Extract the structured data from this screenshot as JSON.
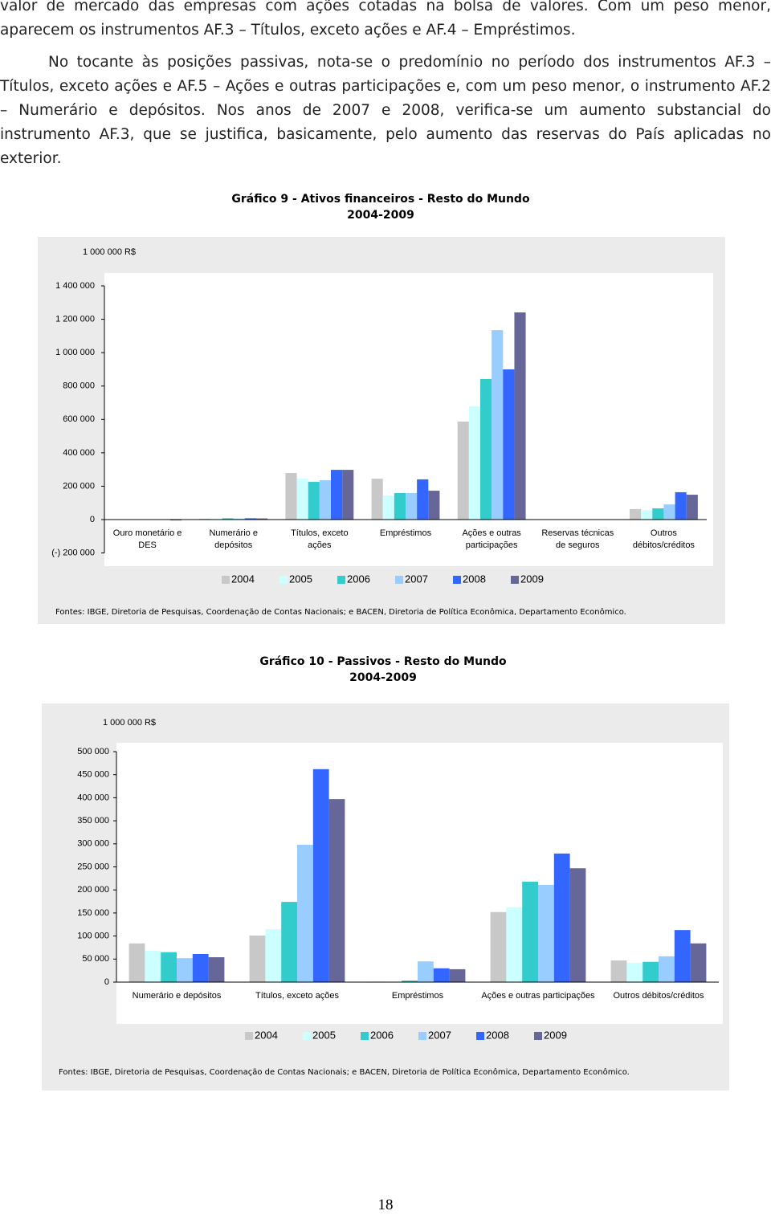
{
  "text": {
    "paragraphs": [
      "valor de mercado das empresas com ações cotadas na bolsa de valores. Com um peso menor, aparecem os instrumentos AF.3 – Títulos, exceto ações e AF.4 – Empréstimos.",
      "No tocante às posições passivas, nota-se o predomínio no período dos instrumentos AF.3 – Títulos, exceto ações e AF.5 – Ações e outras participações e, com um peso menor, o instrumento AF.2 – Numerário e depósitos. Nos anos de 2007 e 2008, verifica-se um aumento substancial do instrumento AF.3, que se justifica, basicamente, pelo aumento das reservas do País aplicadas no exterior."
    ]
  },
  "chart_data": [
    {
      "type": "bar",
      "title": "Gráfico 9 - Ativos financeiros - Resto do Mundo",
      "subtitle": "2004-2009",
      "unit_label": "1 000 000 R$",
      "categories": [
        "Ouro monetário e DES",
        "Numerário e depósitos",
        "Títulos, exceto ações",
        "Empréstimos",
        "Ações e outras participações",
        "Reservas técnicas de seguros",
        "Outros débitos/créditos"
      ],
      "series": [
        {
          "name": "2004",
          "color": "#c8c8c8",
          "values": [
            500,
            5000,
            279000,
            245000,
            587000,
            1000,
            63000
          ]
        },
        {
          "name": "2005",
          "color": "#ccffff",
          "values": [
            500,
            4000,
            245000,
            144000,
            678000,
            1000,
            58000
          ]
        },
        {
          "name": "2006",
          "color": "#33cccc",
          "values": [
            500,
            8000,
            226000,
            159000,
            842000,
            1000,
            67000
          ]
        },
        {
          "name": "2007",
          "color": "#99ccff",
          "values": [
            500,
            6000,
            236000,
            159000,
            1135000,
            1000,
            91000
          ]
        },
        {
          "name": "2008",
          "color": "#3366ff",
          "values": [
            1000,
            8000,
            298000,
            241000,
            900000,
            1000,
            164000
          ]
        },
        {
          "name": "2009",
          "color": "#666699",
          "values": [
            -5000,
            7000,
            298000,
            173000,
            1241000,
            1000,
            149000
          ]
        }
      ],
      "ylim": [
        -200000,
        1400000
      ],
      "yticks": [
        {
          "value": -200000,
          "label": "(-)  200 000"
        },
        0,
        {
          "value": 200000,
          "label": "200 000"
        },
        {
          "value": 400000,
          "label": "400 000"
        },
        {
          "value": 600000,
          "label": "600 000"
        },
        {
          "value": 800000,
          "label": "800 000"
        },
        {
          "value": 1000000,
          "label": "1 000 000"
        },
        {
          "value": 1200000,
          "label": "1 200 000"
        },
        {
          "value": 1400000,
          "label": "1 400 000"
        }
      ],
      "source": "Fontes: IBGE, Diretoria de Pesquisas, Coordenação de Contas Nacionais; e BACEN, Diretoria de Política Econômica, Departamento Econômico."
    },
    {
      "type": "bar",
      "title": "Gráfico 10 - Passivos - Resto do Mundo",
      "subtitle": "2004-2009",
      "unit_label": "1 000 000 R$",
      "categories": [
        "Numerário e depósitos",
        "Títulos, exceto ações",
        "Empréstimos",
        "Ações e outras participações",
        "Outros débitos/créditos"
      ],
      "series": [
        {
          "name": "2004",
          "color": "#c8c8c8",
          "values": [
            84000,
            101000,
            1000,
            152000,
            47000
          ]
        },
        {
          "name": "2005",
          "color": "#ccffff",
          "values": [
            68000,
            115000,
            500,
            162000,
            42000
          ]
        },
        {
          "name": "2006",
          "color": "#33cccc",
          "values": [
            65000,
            174000,
            3500,
            218000,
            44000
          ]
        },
        {
          "name": "2007",
          "color": "#99ccff",
          "values": [
            52000,
            298000,
            45000,
            211000,
            56000
          ]
        },
        {
          "name": "2008",
          "color": "#3366ff",
          "values": [
            61000,
            462000,
            30000,
            279000,
            113000
          ]
        },
        {
          "name": "2009",
          "color": "#666699",
          "values": [
            54000,
            397000,
            28000,
            247000,
            84000
          ]
        }
      ],
      "ylim": [
        0,
        500000
      ],
      "yticks": [
        0,
        {
          "value": 50000,
          "label": "50 000"
        },
        {
          "value": 100000,
          "label": "100 000"
        },
        {
          "value": 150000,
          "label": "150 000"
        },
        {
          "value": 200000,
          "label": "200 000"
        },
        {
          "value": 250000,
          "label": "250 000"
        },
        {
          "value": 300000,
          "label": "300 000"
        },
        {
          "value": 350000,
          "label": "350 000"
        },
        {
          "value": 400000,
          "label": "400 000"
        },
        {
          "value": 450000,
          "label": "450 000"
        },
        {
          "value": 500000,
          "label": "500 000"
        }
      ],
      "source": "Fontes: IBGE, Diretoria de Pesquisas, Coordenação de Contas Nacionais; e BACEN, Diretoria de Política Econômica, Departamento Econômico."
    }
  ],
  "page_number": "18"
}
